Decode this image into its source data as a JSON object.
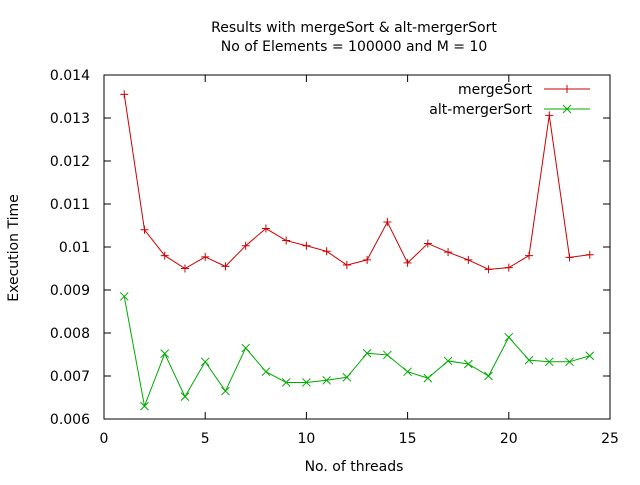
{
  "chart_data": {
    "type": "line",
    "title": [
      "Results with mergeSort & alt-mergerSort",
      "No of Elements = 100000 and M = 10"
    ],
    "xlabel": "No. of threads",
    "ylabel": "Execution Time",
    "xlim": [
      0,
      25
    ],
    "ylim": [
      0.006,
      0.014
    ],
    "xticks": [
      0,
      5,
      10,
      15,
      20,
      25
    ],
    "yticks": [
      0.006,
      0.007,
      0.008,
      0.009,
      0.01,
      0.011,
      0.012,
      0.013,
      0.014
    ],
    "xtick_labels": [
      "0",
      "5",
      "10",
      "15",
      "20",
      "25"
    ],
    "ytick_labels": [
      "0.006",
      "0.007",
      "0.008",
      "0.009",
      "0.01",
      "0.011",
      "0.012",
      "0.013",
      "0.014"
    ],
    "grid": false,
    "legend_position": "top-right",
    "x": [
      1,
      2,
      3,
      4,
      5,
      6,
      7,
      8,
      9,
      10,
      11,
      12,
      13,
      14,
      15,
      16,
      17,
      18,
      19,
      20,
      21,
      22,
      23,
      24
    ],
    "series": [
      {
        "name": "mergeSort",
        "color": "#cc0000",
        "marker": "plus",
        "values": [
          0.01355,
          0.0104,
          0.0098,
          0.0095,
          0.00977,
          0.00955,
          0.01003,
          0.01043,
          0.01015,
          0.01003,
          0.0099,
          0.00958,
          0.0097,
          0.01058,
          0.00963,
          0.01008,
          0.00988,
          0.0097,
          0.00948,
          0.00952,
          0.0098,
          0.01306,
          0.00976,
          0.00982
        ]
      },
      {
        "name": "alt-mergerSort",
        "color": "#00aa00",
        "marker": "cross",
        "values": [
          0.00885,
          0.0063,
          0.00752,
          0.00652,
          0.00733,
          0.00665,
          0.00765,
          0.0071,
          0.00685,
          0.00685,
          0.0069,
          0.00697,
          0.00753,
          0.00749,
          0.0071,
          0.00695,
          0.00735,
          0.00728,
          0.007,
          0.0079,
          0.00737,
          0.00733,
          0.00733,
          0.00747
        ]
      }
    ]
  }
}
